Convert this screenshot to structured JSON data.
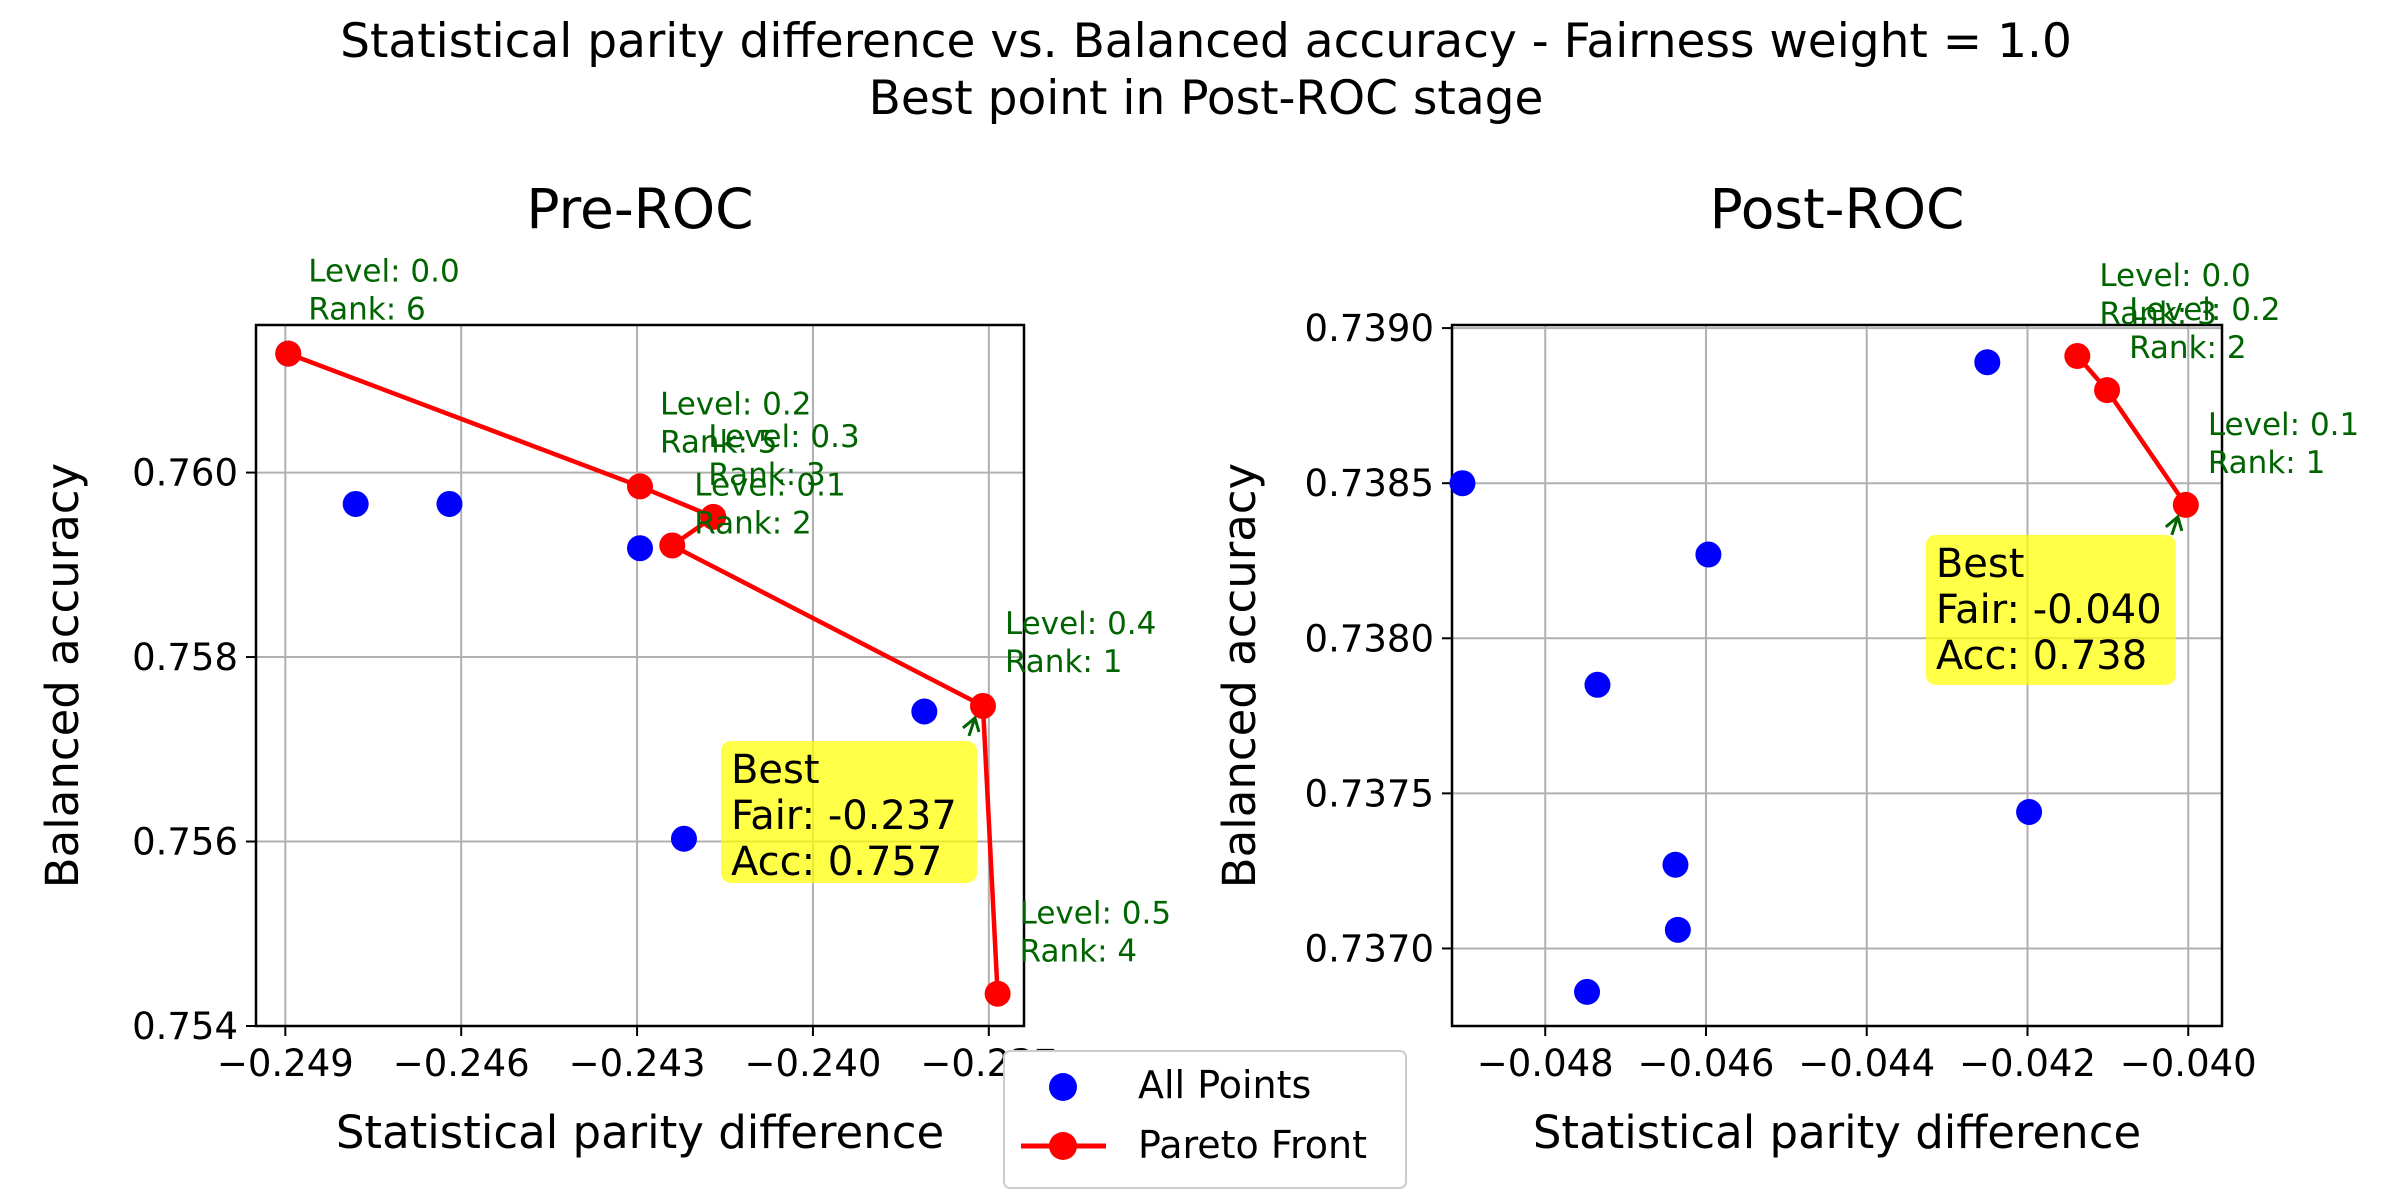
{
  "figure": {
    "title_line1": "Statistical parity difference vs. Balanced accuracy - Fairness weight = 1.0",
    "title_line2": "Best point in Post-ROC stage"
  },
  "legend": {
    "all_points_label": "All Points",
    "pareto_label": "Pareto Front",
    "placement": "lower-center"
  },
  "colors": {
    "all_points": "#0000ff",
    "pareto": "#ff0000",
    "annotation_text": "#006400",
    "best_box": "#ffff00",
    "grid": "#b0b0b0"
  },
  "chart_data": [
    {
      "type": "scatter",
      "title": "Pre-ROC",
      "xlabel": "Statistical parity difference",
      "ylabel": "Balanced accuracy",
      "xlim": [
        -0.2495,
        -0.2364
      ],
      "ylim": [
        0.754,
        0.7616
      ],
      "xticks": [
        -0.249,
        -0.246,
        -0.243,
        -0.24,
        -0.237
      ],
      "xtick_labels": [
        "−0.249",
        "−0.246",
        "−0.243",
        "−0.240",
        "−0.237"
      ],
      "yticks": [
        0.754,
        0.756,
        0.758,
        0.76
      ],
      "ytick_labels": [
        "0.754",
        "0.756",
        "0.758",
        "0.760"
      ],
      "grid": true,
      "all_points": [
        {
          "x": -0.24895,
          "y": 0.76129
        },
        {
          "x": -0.2478,
          "y": 0.75966
        },
        {
          "x": -0.2462,
          "y": 0.75966
        },
        {
          "x": -0.24295,
          "y": 0.75918
        },
        {
          "x": -0.2422,
          "y": 0.75603
        },
        {
          "x": -0.2381,
          "y": 0.75741
        }
      ],
      "pareto_front": [
        {
          "x": -0.24895,
          "y": 0.76129
        },
        {
          "x": -0.24295,
          "y": 0.75985
        },
        {
          "x": -0.2417,
          "y": 0.75952
        },
        {
          "x": -0.2424,
          "y": 0.75921
        },
        {
          "x": -0.2371,
          "y": 0.75747
        },
        {
          "x": -0.23685,
          "y": 0.75435
        }
      ],
      "annotations": [
        {
          "line1": "Level: 0.0",
          "line2": "Rank: 6"
        },
        {
          "line1": "Level: 0.2",
          "line2": "Rank: 5"
        },
        {
          "line1": "Level: 0.3",
          "line2": "Rank: 3"
        },
        {
          "line1": "Level: 0.1",
          "line2": "Rank: 2"
        },
        {
          "line1": "Level: 0.4",
          "line2": "Rank: 1"
        },
        {
          "line1": "Level: 0.5",
          "line2": "Rank: 4"
        }
      ],
      "best": {
        "line1": "Best",
        "line2": "Fair: -0.237",
        "line3": "Acc: 0.757"
      }
    },
    {
      "type": "scatter",
      "title": "Post-ROC",
      "xlabel": "Statistical parity difference",
      "ylabel": "Balanced accuracy",
      "xlim": [
        -0.04916,
        -0.03958
      ],
      "ylim": [
        0.73675,
        0.73901
      ],
      "xticks": [
        -0.048,
        -0.046,
        -0.044,
        -0.042,
        -0.04
      ],
      "xtick_labels": [
        "−0.048",
        "−0.046",
        "−0.044",
        "−0.042",
        "−0.040"
      ],
      "yticks": [
        0.737,
        0.7375,
        0.738,
        0.7385,
        0.739
      ],
      "ytick_labels": [
        "0.7370",
        "0.7375",
        "0.7380",
        "0.7385",
        "0.7390"
      ],
      "grid": true,
      "all_points": [
        {
          "x": -0.04903,
          "y": 0.7385
        },
        {
          "x": -0.04735,
          "y": 0.73785
        },
        {
          "x": -0.04597,
          "y": 0.73827
        },
        {
          "x": -0.0425,
          "y": 0.73889
        },
        {
          "x": -0.04198,
          "y": 0.73744
        },
        {
          "x": -0.04638,
          "y": 0.73727
        },
        {
          "x": -0.04635,
          "y": 0.73706
        },
        {
          "x": -0.04748,
          "y": 0.73686
        }
      ],
      "pareto_front": [
        {
          "x": -0.04138,
          "y": 0.73891
        },
        {
          "x": -0.04101,
          "y": 0.7388
        },
        {
          "x": -0.04003,
          "y": 0.73843
        }
      ],
      "annotations": [
        {
          "line1": "Level: 0.0",
          "line2": "Rank: 3"
        },
        {
          "line1": "Level: 0.2",
          "line2": "Rank: 2"
        },
        {
          "line1": "Level: 0.1",
          "line2": "Rank: 1"
        }
      ],
      "best": {
        "line1": "Best",
        "line2": "Fair: -0.040",
        "line3": "Acc: 0.738"
      }
    }
  ]
}
